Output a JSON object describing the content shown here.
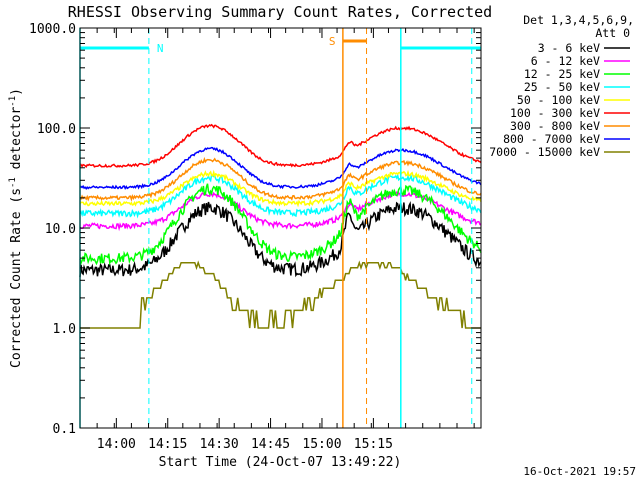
{
  "chart_data": {
    "type": "line",
    "title": "RHESSI Observing Summary Count Rates, Corrected",
    "xlabel": "Start Time (24-Oct-07 13:49:22)",
    "ylabel_parts": [
      "Corrected Count Rate (s",
      "-1",
      " detector",
      "-1",
      ")"
    ],
    "yscale": "log",
    "ylim": [
      0.1,
      1000
    ],
    "yticks": [
      {
        "v": 1000,
        "label": "1000.0"
      },
      {
        "v": 100,
        "label": "100.0"
      },
      {
        "v": 10,
        "label": "10.0"
      },
      {
        "v": 1,
        "label": "1.0"
      },
      {
        "v": 0.1,
        "label": "0.1"
      }
    ],
    "xlim_min": [
      0,
      117
    ],
    "xticks": [
      {
        "t": 10.6,
        "label": "14:00"
      },
      {
        "t": 25.6,
        "label": "14:15"
      },
      {
        "t": 40.6,
        "label": "14:30"
      },
      {
        "t": 55.6,
        "label": "14:45"
      },
      {
        "t": 70.6,
        "label": "15:00"
      },
      {
        "t": 85.6,
        "label": "15:15"
      }
    ],
    "detectors": "Det 1,3,4,5,6,9,",
    "attenuator": "Att 0",
    "footer_date": "16-Oct-2021 19:57",
    "night_label": "N",
    "saa_label": "S",
    "series": [
      {
        "name": "3 - 6 keV",
        "color": "#000000",
        "base": 3.8,
        "f1": 16,
        "f2": 16,
        "e1": 0.5,
        "e2": 0.2,
        "noise": 0.15
      },
      {
        "name": "6 - 12 keV",
        "color": "#ff00ff",
        "base": 10.5,
        "f1": 22,
        "f2": 22,
        "e1": 0.1,
        "e2": 0.0,
        "noise": 0.06
      },
      {
        "name": "12 - 25 keV",
        "color": "#00ff00",
        "base": 5.0,
        "f1": 25,
        "f2": 24,
        "e1": 0.5,
        "e2": 0.15,
        "noise": 0.12
      },
      {
        "name": "25 - 50 keV",
        "color": "#00ffff",
        "base": 14.0,
        "f1": 32,
        "f2": 32,
        "e1": 0.15,
        "e2": 0.0,
        "noise": 0.07
      },
      {
        "name": "50 - 100 keV",
        "color": "#ffff00",
        "base": 17.5,
        "f1": 35,
        "f2": 35,
        "e1": 0.1,
        "e2": 0.0,
        "noise": 0.05
      },
      {
        "name": "100 - 300 keV",
        "color": "#ff0000",
        "base": 42.0,
        "f1": 105,
        "f2": 100,
        "e1": 0.1,
        "e2": 0.0,
        "noise": 0.03
      },
      {
        "name": "300 - 800 keV",
        "color": "#ff8c00",
        "base": 20.0,
        "f1": 48,
        "f2": 45,
        "e1": 0.1,
        "e2": 0.0,
        "noise": 0.04
      },
      {
        "name": "800 - 7000 keV",
        "color": "#0000ff",
        "base": 25.5,
        "f1": 62,
        "f2": 60,
        "e1": 0.1,
        "e2": 0.0,
        "noise": 0.03
      },
      {
        "name": "7000 - 15000 keV",
        "color": "#808000",
        "base": 1.0,
        "f1": 4.2,
        "f2": 4.2,
        "e1": 0.0,
        "e2": 0.0,
        "noise": 0.0
      }
    ],
    "night_bars": [
      [
        0,
        20.1
      ],
      [
        93.6,
        117
      ]
    ],
    "night_dashed": [
      20.1,
      114.3
    ],
    "night_solid": [
      0,
      93.6
    ],
    "saa_bar": [
      76.7,
      83.6
    ],
    "saa_solid": 76.7,
    "saa_dashed": 83.6
  }
}
